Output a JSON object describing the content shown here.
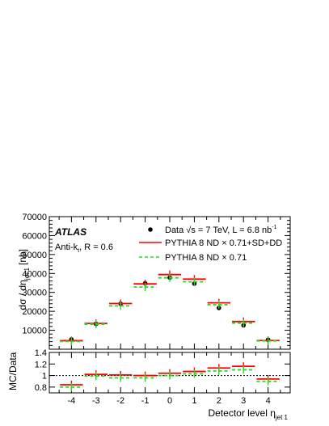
{
  "chart_data": [
    {
      "type": "scatter",
      "panel": "main",
      "ylabel": "dσ / dη",
      "ylabel_sub": "jet 1",
      "ylabel_unit": "[nb]",
      "ylim": [
        0,
        70000
      ],
      "yticks": [
        "10000",
        "20000",
        "30000",
        "40000",
        "50000",
        "60000",
        "70000"
      ],
      "ytick_values": [
        10000,
        20000,
        30000,
        40000,
        50000,
        60000,
        70000
      ],
      "xlim": [
        -4.9,
        4.9
      ],
      "xticks": [
        "-4",
        "-3",
        "-2",
        "-1",
        "0",
        "1",
        "2",
        "3",
        "4"
      ],
      "grid": false,
      "legend_position": "top-right",
      "atlas_label": "ATLAS",
      "algo_label": "Anti-k",
      "algo_label_sub": "t",
      "algo_label_rest": ", R = 0.6",
      "bin_edges": [
        -4.5,
        -3.5,
        -2.5,
        -1.5,
        -0.5,
        0.5,
        1.5,
        2.5,
        3.5,
        4.5
      ],
      "x": [
        -4,
        -3,
        -2,
        -1,
        0,
        1,
        2,
        3,
        4
      ],
      "series": [
        {
          "name": "Data √s = 7 TeV, L = 6.8 nb⁻¹",
          "legend_text": "Data √s = 7 TeV, L = 6.8 nb",
          "legend_sup": "-1",
          "style": "marker",
          "color": "#000000",
          "values": [
            5200,
            13400,
            24000,
            34800,
            37800,
            34600,
            21800,
            12600,
            5000
          ]
        },
        {
          "name": "PYTHIA 8 ND × 0.71+SD+DD",
          "legend_text": "PYTHIA 8 ND × 0.71+SD+DD",
          "style": "solid",
          "color": "#ff0000",
          "values": [
            4500,
            13600,
            24100,
            34500,
            39400,
            37000,
            24500,
            14600,
            4600
          ]
        },
        {
          "name": "PYTHIA 8 ND × 0.71",
          "legend_text": "PYTHIA 8 ND × 0.71",
          "style": "dashed",
          "color": "#22dd22",
          "values": [
            4100,
            13200,
            22900,
            32800,
            37700,
            35600,
            23500,
            13800,
            4400
          ]
        }
      ]
    },
    {
      "type": "scatter",
      "panel": "ratio",
      "ylabel": "MC/Data",
      "xlabel": "Detector level  η",
      "xlabel_sub": "jet 1",
      "ylim": [
        0.7,
        1.4
      ],
      "yticks": [
        "0.8",
        "1",
        "1.2",
        "1.4"
      ],
      "ytick_values": [
        0.8,
        1.0,
        1.2,
        1.4
      ],
      "xticks": [
        "-4",
        "-3",
        "-2",
        "-1",
        "0",
        "1",
        "2",
        "3",
        "4"
      ],
      "reference_line": 1.0,
      "x": [
        -4,
        -3,
        -2,
        -1,
        0,
        1,
        2,
        3,
        4
      ],
      "series": [
        {
          "name": "PYTHIA 8 ND × 0.71+SD+DD",
          "style": "solid",
          "color": "#ff0000",
          "values": [
            0.84,
            1.02,
            1.01,
            1.0,
            1.04,
            1.07,
            1.13,
            1.16,
            0.94
          ]
        },
        {
          "name": "PYTHIA 8 ND × 0.71",
          "style": "dashed",
          "color": "#22dd22",
          "values": [
            0.8,
            0.99,
            0.96,
            0.96,
            1.0,
            1.03,
            1.08,
            1.1,
            0.9
          ]
        }
      ]
    }
  ]
}
